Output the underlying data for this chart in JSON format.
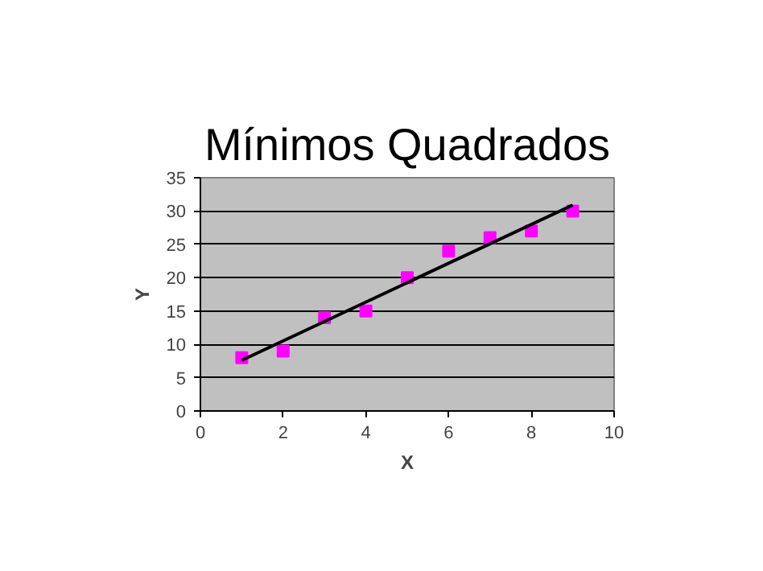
{
  "chart_data": {
    "type": "scatter",
    "title": "Mínimos Quadrados",
    "xlabel": "X",
    "ylabel": "Y",
    "x": [
      1,
      2,
      3,
      4,
      5,
      6,
      7,
      8,
      9
    ],
    "series": [
      {
        "color": "#ff00ff",
        "marker": "square",
        "values": [
          8,
          9,
          14,
          15,
          20,
          24,
          26,
          27,
          30
        ]
      },
      {
        "type": "line",
        "color": "#000000",
        "marker": "none",
        "x": [
          1,
          9
        ],
        "values": [
          7.6,
          30.9
        ]
      }
    ],
    "xlim": [
      0,
      10
    ],
    "xticks": [
      0,
      2,
      4,
      6,
      8,
      10
    ],
    "ylim": [
      0,
      35
    ],
    "yticks": [
      0,
      5,
      10,
      15,
      20,
      25,
      30,
      35
    ],
    "grid": "y"
  }
}
